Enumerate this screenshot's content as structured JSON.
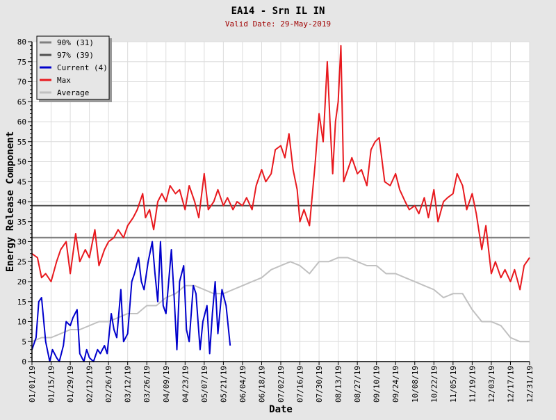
{
  "chart_data": {
    "type": "line",
    "title": "EA14 - Srn IL IN",
    "subtitle": "Valid Date: 29-May-2019",
    "xlabel": "Date",
    "ylabel": "Energy Release Component",
    "ylim": [
      0,
      80
    ],
    "yticks": [
      0,
      5,
      10,
      15,
      20,
      25,
      30,
      35,
      40,
      45,
      50,
      55,
      60,
      65,
      70,
      75,
      80
    ],
    "xlim_days": [
      0,
      364
    ],
    "xtick_labels": [
      "01/01/19",
      "01/15/19",
      "01/29/19",
      "02/12/19",
      "02/26/19",
      "03/12/19",
      "03/26/19",
      "04/09/19",
      "04/23/19",
      "05/07/19",
      "05/21/19",
      "06/04/19",
      "06/18/19",
      "07/02/19",
      "07/16/19",
      "07/30/19",
      "08/13/19",
      "08/27/19",
      "09/10/19",
      "09/24/19",
      "10/08/19",
      "10/22/19",
      "11/05/19",
      "11/19/19",
      "12/03/19",
      "12/17/19",
      "12/31/19"
    ],
    "grid": true,
    "legend_position": "top-left",
    "reference_lines": [
      {
        "name": "90% (31)",
        "value": 31,
        "color": "#808080"
      },
      {
        "name": "97% (39)",
        "value": 39,
        "color": "#505050"
      }
    ],
    "series": [
      {
        "name": "Current (4)",
        "color": "#0000cc",
        "x": [
          0,
          3,
          5,
          7,
          10,
          13,
          15,
          18,
          20,
          23,
          25,
          28,
          30,
          33,
          35,
          38,
          40,
          42,
          45,
          48,
          50,
          53,
          55,
          58,
          60,
          62,
          65,
          67,
          70,
          73,
          75,
          78,
          80,
          82,
          85,
          88,
          90,
          92,
          94,
          96,
          98,
          100,
          102,
          104,
          106,
          108,
          111,
          113,
          115,
          118,
          120,
          123,
          125,
          128,
          130,
          132,
          134,
          136,
          139,
          142,
          145
        ],
        "y": [
          3,
          6,
          15,
          16,
          5,
          0,
          3,
          1,
          0,
          4,
          10,
          9,
          11,
          13,
          2,
          0,
          3,
          1,
          0,
          3,
          2,
          4,
          2,
          12,
          8,
          6,
          18,
          5,
          7,
          20,
          22,
          26,
          20,
          18,
          25,
          30,
          22,
          15,
          30,
          14,
          12,
          20,
          28,
          16,
          3,
          20,
          24,
          8,
          5,
          19,
          17,
          3,
          10,
          14,
          2,
          12,
          20,
          7,
          18,
          14,
          4
        ]
      },
      {
        "name": "Max",
        "color": "#e8191e",
        "x": [
          0,
          4,
          7,
          10,
          14,
          18,
          21,
          25,
          28,
          32,
          35,
          39,
          42,
          46,
          49,
          53,
          56,
          60,
          63,
          67,
          70,
          74,
          77,
          81,
          83,
          86,
          89,
          92,
          95,
          98,
          101,
          105,
          108,
          112,
          115,
          119,
          122,
          126,
          129,
          133,
          136,
          140,
          143,
          147,
          150,
          154,
          157,
          161,
          164,
          168,
          171,
          175,
          178,
          182,
          185,
          188,
          191,
          194,
          196,
          199,
          203,
          207,
          210,
          213,
          216,
          218,
          220,
          222,
          224,
          226,
          228,
          231,
          234,
          238,
          241,
          245,
          248,
          251,
          254,
          258,
          262,
          266,
          269,
          273,
          276,
          280,
          283,
          287,
          290,
          294,
          297,
          301,
          304,
          308,
          311,
          315,
          318,
          322,
          325,
          329,
          332,
          336,
          339,
          343,
          346,
          350,
          353,
          357,
          360,
          364
        ],
        "y": [
          27,
          26,
          21,
          22,
          20,
          25,
          28,
          30,
          22,
          32,
          25,
          28,
          26,
          33,
          24,
          28,
          30,
          31,
          33,
          31,
          34,
          36,
          38,
          42,
          36,
          38,
          33,
          40,
          42,
          40,
          44,
          42,
          43,
          38,
          44,
          40,
          36,
          47,
          38,
          40,
          43,
          39,
          41,
          38,
          40,
          39,
          41,
          38,
          44,
          48,
          45,
          47,
          53,
          54,
          51,
          57,
          48,
          43,
          35,
          38,
          34,
          49,
          62,
          55,
          75,
          60,
          47,
          60,
          65,
          79,
          45,
          48,
          51,
          47,
          48,
          44,
          53,
          55,
          56,
          45,
          44,
          47,
          43,
          40,
          38,
          39,
          37,
          41,
          36,
          43,
          35,
          40,
          41,
          42,
          47,
          44,
          38,
          42,
          37,
          28,
          34,
          22,
          25,
          21,
          23,
          20,
          23,
          18,
          24,
          26
        ]
      },
      {
        "name": "Average",
        "color": "#c0c0c0",
        "x": [
          0,
          7,
          14,
          21,
          28,
          35,
          42,
          49,
          56,
          63,
          70,
          77,
          84,
          91,
          98,
          105,
          112,
          119,
          126,
          133,
          140,
          147,
          154,
          161,
          168,
          175,
          182,
          189,
          196,
          203,
          210,
          217,
          224,
          231,
          238,
          245,
          252,
          259,
          266,
          273,
          280,
          287,
          294,
          301,
          308,
          315,
          322,
          329,
          336,
          343,
          350,
          357,
          364
        ],
        "y": [
          5,
          6,
          6,
          7,
          8,
          8,
          9,
          10,
          10,
          11,
          12,
          12,
          14,
          14,
          16,
          17,
          19,
          19,
          18,
          17,
          17,
          18,
          19,
          20,
          21,
          23,
          24,
          25,
          24,
          22,
          25,
          25,
          26,
          26,
          25,
          24,
          24,
          22,
          22,
          21,
          20,
          19,
          18,
          16,
          17,
          17,
          13,
          10,
          10,
          9,
          6,
          5,
          5
        ]
      }
    ]
  }
}
